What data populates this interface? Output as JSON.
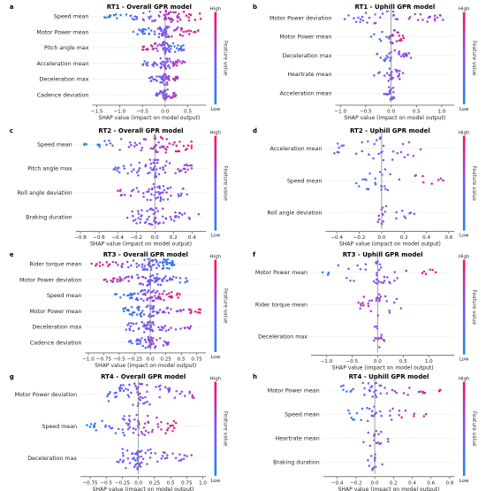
{
  "figure": {
    "colorbar": {
      "high": "High",
      "low": "Low",
      "title": "Feature value",
      "colors": [
        "#1e88e5",
        "#7c52ff",
        "#ff0d57"
      ]
    },
    "xlabel": "SHAP value (impact on model output)"
  },
  "chart_data": [
    {
      "type": "scatter",
      "letter": "a",
      "title": "RT1 - Overall GPR model",
      "xlabel": "SHAP value (impact on model output)",
      "xlim": [
        -1.6,
        0.9
      ],
      "xticks": [
        -1.5,
        -1.0,
        -0.5,
        0.0,
        0.5
      ],
      "features": [
        {
          "name": "Speed mean",
          "min": -1.4,
          "max": 0.8,
          "bias": 1.1,
          "n": 70
        },
        {
          "name": "Motor Power mean",
          "min": -0.75,
          "max": 0.75,
          "bias": 0.9,
          "n": 70
        },
        {
          "name": "Pitch angle max",
          "min": -0.5,
          "max": 0.45,
          "bias": -0.8,
          "n": 60
        },
        {
          "name": "Acceleration mean",
          "min": -0.5,
          "max": 0.45,
          "bias": 0.5,
          "n": 55
        },
        {
          "name": "Deceleration max",
          "min": -0.35,
          "max": 0.3,
          "bias": 0.4,
          "n": 50
        },
        {
          "name": "Cadence deviation",
          "min": -0.2,
          "max": 0.25,
          "bias": 0.4,
          "n": 40
        }
      ]
    },
    {
      "type": "scatter",
      "letter": "b",
      "title": "RT1 - Uphill GPR model",
      "xlabel": "SHAP value (impact on model output)",
      "xlim": [
        -1.1,
        1.25
      ],
      "xticks": [
        -1.0,
        -0.5,
        0.0,
        0.5,
        1.0
      ],
      "features": [
        {
          "name": "Motor Power deviation",
          "min": -1.0,
          "max": 1.15,
          "bias": 0.3,
          "n": 40
        },
        {
          "name": "Motor Power mean",
          "min": -0.4,
          "max": 0.3,
          "bias": 1.0,
          "n": 30
        },
        {
          "name": "Deceleration max",
          "min": -0.3,
          "max": 0.4,
          "bias": 0.3,
          "n": 28
        },
        {
          "name": "Heartrate mean",
          "min": -0.35,
          "max": 0.25,
          "bias": 0.3,
          "n": 26
        },
        {
          "name": "Acceleration mean",
          "min": -0.15,
          "max": 0.1,
          "bias": 0.2,
          "n": 20
        }
      ]
    },
    {
      "type": "scatter",
      "letter": "c",
      "title": "RT2 - Overall GPR model",
      "xlabel": "SHAP value (impact on model output)",
      "xlim": [
        -0.85,
        0.55
      ],
      "xticks": [
        -0.8,
        -0.6,
        -0.4,
        -0.2,
        0.0,
        0.2,
        0.4
      ],
      "features": [
        {
          "name": "Speed mean",
          "min": -0.8,
          "max": 0.4,
          "bias": 1.0,
          "n": 70
        },
        {
          "name": "Pitch angle max",
          "min": -0.45,
          "max": 0.4,
          "bias": 0.3,
          "n": 65
        },
        {
          "name": "Roll angle deviation",
          "min": -0.4,
          "max": 0.35,
          "bias": -0.3,
          "n": 55
        },
        {
          "name": "Braking duration",
          "min": -0.3,
          "max": 0.5,
          "bias": 0.0,
          "n": 60
        }
      ]
    },
    {
      "type": "scatter",
      "letter": "d",
      "title": "RT2 - Uphill GPR model",
      "xlabel": "SHAP value (impact on model output)",
      "xlim": [
        -0.5,
        0.65
      ],
      "xticks": [
        -0.4,
        -0.2,
        0.0,
        0.2,
        0.4,
        0.6
      ],
      "features": [
        {
          "name": "Acceleration mean",
          "min": -0.45,
          "max": 0.55,
          "bias": 0.2,
          "n": 32
        },
        {
          "name": "Speed mean",
          "min": -0.3,
          "max": 0.55,
          "bias": 0.8,
          "n": 30
        },
        {
          "name": "Roll angle deviation",
          "min": -0.2,
          "max": 0.3,
          "bias": -0.2,
          "n": 20
        }
      ]
    },
    {
      "type": "scatter",
      "letter": "e",
      "title": "RT3 - Overall GPR model",
      "xlabel": "SHAP value (impact on model output)",
      "xlim": [
        -1.05,
        0.9
      ],
      "xticks": [
        -1.0,
        -0.75,
        -0.5,
        -0.25,
        0.0,
        0.25,
        0.5,
        0.75
      ],
      "features": [
        {
          "name": "Rider torque mean",
          "min": -0.95,
          "max": 0.45,
          "bias": -0.9,
          "n": 80
        },
        {
          "name": "Motor Power deviation",
          "min": -0.75,
          "max": 0.6,
          "bias": -0.6,
          "n": 80
        },
        {
          "name": "Speed mean",
          "min": -0.6,
          "max": 0.5,
          "bias": 1.0,
          "n": 70
        },
        {
          "name": "Motor Power mean",
          "min": -0.45,
          "max": 0.85,
          "bias": 0.9,
          "n": 70
        },
        {
          "name": "Deceleration max",
          "min": -0.4,
          "max": 0.7,
          "bias": 0.3,
          "n": 60
        },
        {
          "name": "Cadence deviation",
          "min": -0.35,
          "max": 0.3,
          "bias": 0.4,
          "n": 55
        }
      ]
    },
    {
      "type": "scatter",
      "letter": "f",
      "title": "RT3 - Uphill GPR model",
      "xlabel": "SHAP value (impact on model output)",
      "xlim": [
        -1.3,
        1.5
      ],
      "xticks": [
        -1.0,
        -0.5,
        0.0,
        0.5,
        1.0
      ],
      "features": [
        {
          "name": "Motor Power mean",
          "min": -1.15,
          "max": 1.2,
          "bias": 1.0,
          "n": 45
        },
        {
          "name": "Rider torque mean",
          "min": -0.4,
          "max": 0.6,
          "bias": -0.5,
          "n": 28
        },
        {
          "name": "Deceleration max",
          "min": -0.15,
          "max": 0.15,
          "bias": 0.3,
          "n": 14
        }
      ]
    },
    {
      "type": "scatter",
      "letter": "g",
      "title": "RT4 - Overall GPR model",
      "xlabel": "SHAP value (impact on model output)",
      "xlim": [
        -0.9,
        1.05
      ],
      "xticks": [
        -0.75,
        -0.5,
        -0.25,
        0.0,
        0.25,
        0.5,
        0.75,
        1.0
      ],
      "features": [
        {
          "name": "Motor Power deviation",
          "min": -0.5,
          "max": 0.95,
          "bias": 0.5,
          "n": 70
        },
        {
          "name": "Speed mean",
          "min": -0.8,
          "max": 0.6,
          "bias": 0.9,
          "n": 70
        },
        {
          "name": "Deceleration max",
          "min": -0.35,
          "max": 0.85,
          "bias": 0.3,
          "n": 70
        }
      ]
    },
    {
      "type": "scatter",
      "letter": "h",
      "title": "RT4 - Uphill GPR model",
      "xlabel": "SHAP value (impact on model output)",
      "xlim": [
        -0.55,
        0.85
      ],
      "xticks": [
        -0.4,
        -0.2,
        0.0,
        0.2,
        0.4,
        0.6,
        0.8
      ],
      "features": [
        {
          "name": "Motor Power mean",
          "min": -0.45,
          "max": 0.7,
          "bias": 0.9,
          "n": 40
        },
        {
          "name": "Speed mean",
          "min": -0.3,
          "max": 0.55,
          "bias": 0.8,
          "n": 32
        },
        {
          "name": "Heartrate mean",
          "min": -0.15,
          "max": 0.15,
          "bias": 0.2,
          "n": 16
        },
        {
          "name": "Braking duration",
          "min": -0.1,
          "max": 0.1,
          "bias": 0.3,
          "n": 12
        }
      ]
    }
  ]
}
